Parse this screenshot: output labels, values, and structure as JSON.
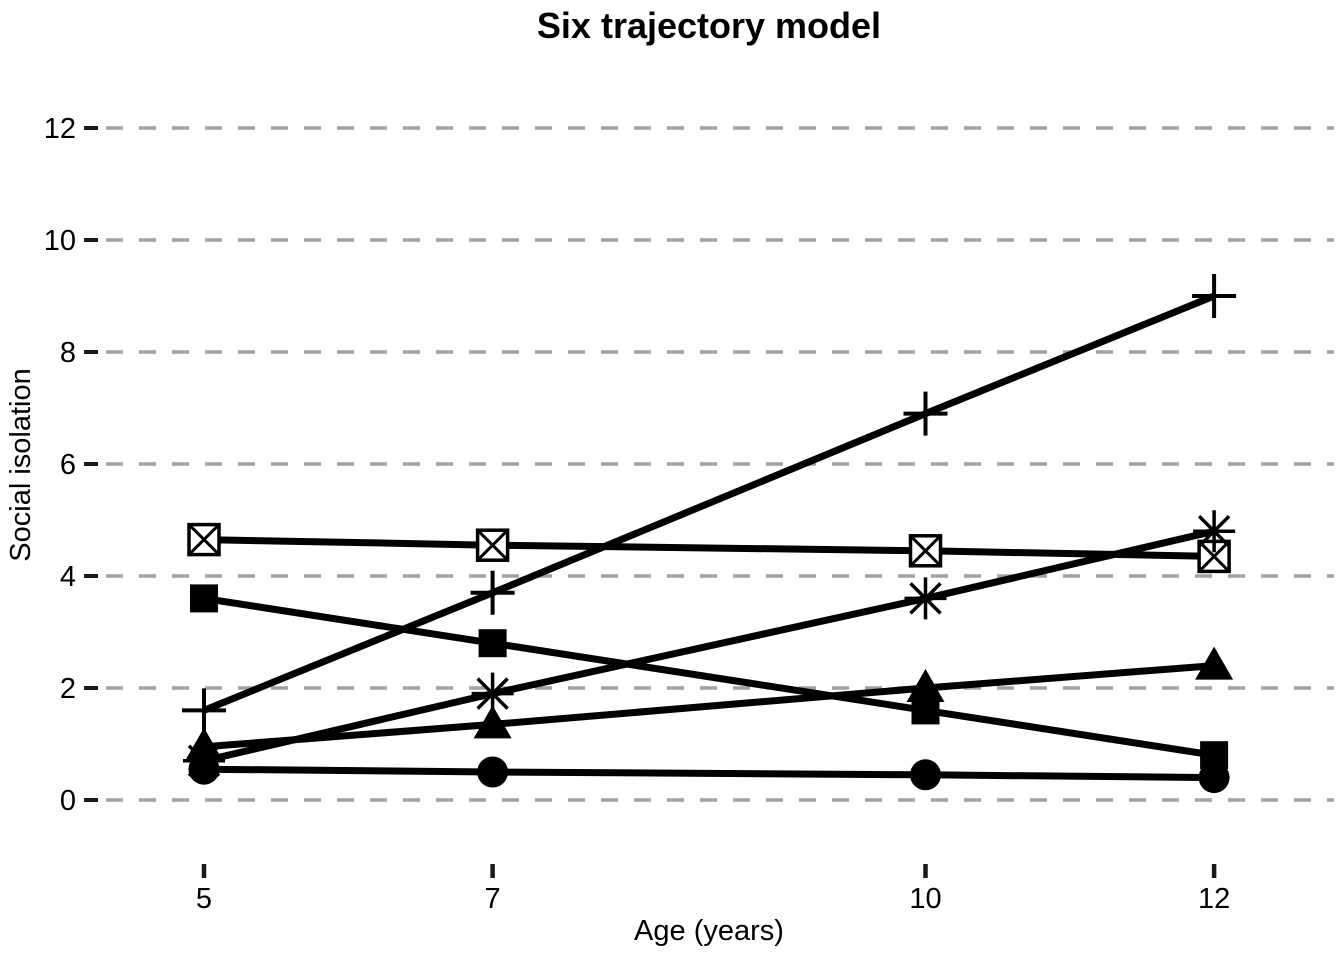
{
  "chart_data": {
    "type": "line",
    "title": "Six trajectory model",
    "xlabel": "Age (years)",
    "ylabel": "Social isolation",
    "x": [
      5,
      7,
      10,
      12
    ],
    "x_tick_labels": [
      "5",
      "7",
      "10",
      "12"
    ],
    "y_ticks": [
      0,
      2,
      4,
      6,
      8,
      10,
      12
    ],
    "y_tick_labels": [
      "0",
      "2",
      "4",
      "6",
      "8",
      "10",
      "12"
    ],
    "xlim": [
      4.2,
      12.8
    ],
    "ylim": [
      0,
      12
    ],
    "grid": "horizontal-dashed",
    "legend": "none",
    "line_color": "#000000",
    "series": [
      {
        "name": "trajectory-plus",
        "marker": "plus",
        "values": [
          1.6,
          3.7,
          6.9,
          9.0
        ]
      },
      {
        "name": "trajectory-boxed-x",
        "marker": "square-x",
        "values": [
          4.65,
          4.55,
          4.45,
          4.35
        ]
      },
      {
        "name": "trajectory-square",
        "marker": "filled-square",
        "values": [
          3.6,
          2.8,
          1.6,
          0.8
        ]
      },
      {
        "name": "trajectory-asterisk",
        "marker": "asterisk",
        "values": [
          0.7,
          1.9,
          3.6,
          4.8
        ]
      },
      {
        "name": "trajectory-triangle",
        "marker": "filled-triangle",
        "values": [
          0.95,
          1.35,
          2.0,
          2.4
        ]
      },
      {
        "name": "trajectory-circle",
        "marker": "filled-circle",
        "values": [
          0.55,
          0.5,
          0.45,
          0.4
        ]
      }
    ],
    "colors": {
      "series": "#000000",
      "grid": "#a1a1a1",
      "axis_tick": "#1a1a1a",
      "text": "#000000",
      "background": "#ffffff"
    }
  }
}
